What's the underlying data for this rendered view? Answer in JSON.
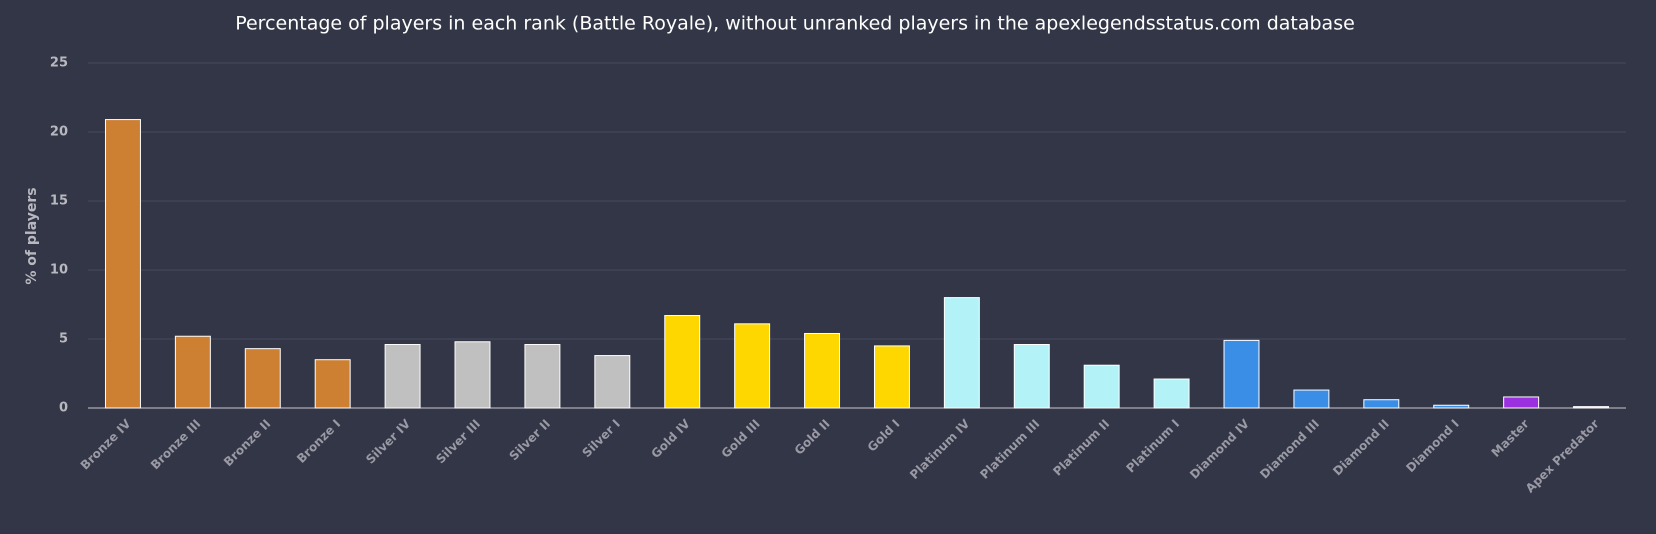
{
  "chart_data": {
    "type": "bar",
    "title": "Percentage of players in each rank (Battle Royale), without unranked players in the apexlegendsstatus.com database",
    "y_label": "% of players",
    "categories": [
      "Bronze IV",
      "Bronze III",
      "Bronze II",
      "Bronze I",
      "Silver IV",
      "Silver III",
      "Silver II",
      "Silver I",
      "Gold IV",
      "Gold III",
      "Gold II",
      "Gold I",
      "Platinum IV",
      "Platinum III",
      "Platinum II",
      "Platinum I",
      "Diamond IV",
      "Diamond III",
      "Diamond II",
      "Diamond I",
      "Master",
      "Apex Predator"
    ],
    "values": [
      20.9,
      5.2,
      4.3,
      3.5,
      4.6,
      4.8,
      4.6,
      3.8,
      6.7,
      6.1,
      5.4,
      4.5,
      8.0,
      4.6,
      3.1,
      2.1,
      4.9,
      1.3,
      0.6,
      0.2,
      0.8,
      0.1
    ],
    "colors": [
      "#cd7f32",
      "#cd7f32",
      "#cd7f32",
      "#cd7f32",
      "#c0c0c0",
      "#c0c0c0",
      "#c0c0c0",
      "#c0c0c0",
      "#ffd700",
      "#ffd700",
      "#ffd700",
      "#ffd700",
      "#b3f3f8",
      "#b3f3f8",
      "#b3f3f8",
      "#b3f3f8",
      "#3a8ee6",
      "#3a8ee6",
      "#3a8ee6",
      "#3a8ee6",
      "#9b30e0",
      "#e8e8e8"
    ],
    "ylim": [
      0,
      25
    ],
    "yticks": [
      0,
      5,
      10,
      15,
      20,
      25
    ],
    "grid": true
  }
}
